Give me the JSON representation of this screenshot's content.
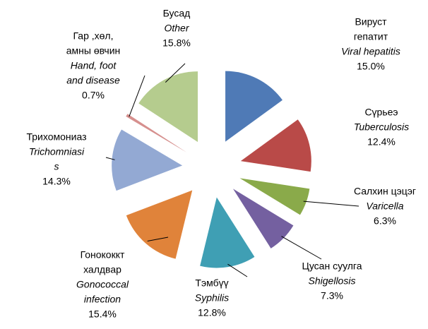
{
  "chart_data": {
    "type": "pie",
    "categories": [
      {
        "mn": [
          "Вируст",
          "гепатит"
        ],
        "en": [
          "Viral hepatitis"
        ]
      },
      {
        "mn": [
          "Сүрьеэ"
        ],
        "en": [
          "Tuberculosis"
        ]
      },
      {
        "mn": [
          "Салхин цэцэг"
        ],
        "en": [
          "Varicella"
        ]
      },
      {
        "mn": [
          "Цусан суулга"
        ],
        "en": [
          "Shigellosis"
        ]
      },
      {
        "mn": [
          "Тэмбүү"
        ],
        "en": [
          "Syphilis"
        ]
      },
      {
        "mn": [
          "Гонококкт",
          "халдвар"
        ],
        "en": [
          "Gonococcal",
          "infection"
        ]
      },
      {
        "mn": [
          "Трихомониаз"
        ],
        "en": [
          "Trichomniasi",
          "s"
        ]
      },
      {
        "mn": [
          "Гар ,хөл,",
          "амны өвчин"
        ],
        "en": [
          "Hand, foot",
          "and disease"
        ]
      },
      {
        "mn": [
          "Бусад"
        ],
        "en": [
          "Other"
        ]
      }
    ],
    "values": [
      15,
      12.4,
      6.3,
      7.3,
      12.8,
      15.4,
      14.3,
      0.7,
      15.8
    ],
    "value_labels": [
      "15.0%",
      "12.4%",
      "6.3%",
      "7.3%",
      "12.8%",
      "15.4%",
      "14.3%",
      "0.7%",
      "15.8%"
    ],
    "colors": [
      "#4f7ab6",
      "#b94a48",
      "#8aaa4a",
      "#7460a0",
      "#3f9fb4",
      "#e0833a",
      "#93a9d3",
      "#d6908e",
      "#b5cc8e"
    ]
  }
}
